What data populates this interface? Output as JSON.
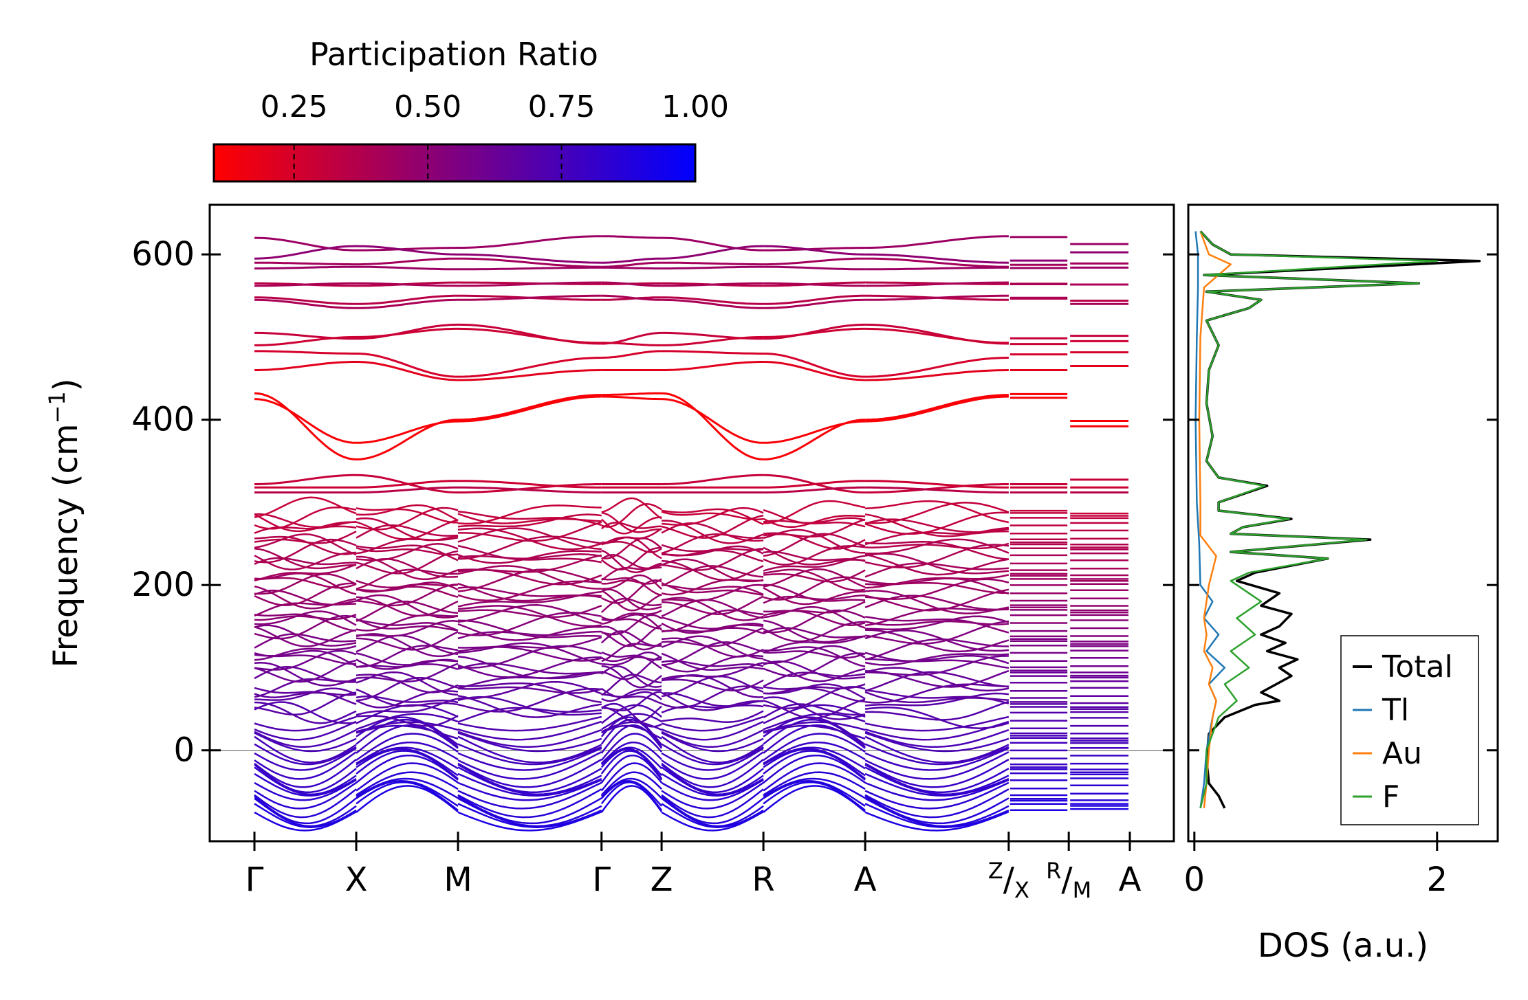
{
  "chart_data": [
    {
      "type": "line",
      "name": "phonon-band-structure",
      "ylabel": "Frequency (cm",
      "ylabel_sup": "−1",
      "ylabel_close": ")",
      "ylim": [
        -110,
        660
      ],
      "yticks": [
        0,
        200,
        400,
        600
      ],
      "ytick_labels": [
        "0",
        "200",
        "400",
        "600"
      ],
      "zero_line": true,
      "kpath_segments": [
        [
          0,
          1.0
        ],
        [
          1.0,
          2.0
        ],
        [
          2.0,
          3.41
        ],
        [
          3.41,
          4.0
        ],
        [
          4.0,
          5.0
        ],
        [
          5.0,
          6.0
        ],
        [
          6.0,
          7.41
        ],
        [
          7.41,
          8.0
        ],
        [
          8.0,
          8.6
        ]
      ],
      "kpoint_positions": [
        0,
        1.0,
        2.0,
        3.41,
        4.0,
        5.0,
        6.0,
        7.41,
        8.0,
        8.6
      ],
      "kpoint_labels": [
        {
          "main": "Γ"
        },
        {
          "main": "X"
        },
        {
          "main": "M"
        },
        {
          "main": "Γ"
        },
        {
          "main": "Z"
        },
        {
          "main": "R"
        },
        {
          "main": "A"
        },
        {
          "sup": "Z",
          "main": "/",
          "sub": "X"
        },
        {
          "sup": "R",
          "main": "/",
          "sub": "M"
        },
        {
          "main": "A"
        }
      ],
      "color_by": "participation_ratio",
      "branches_high": [
        {
          "f0": 620,
          "f1": 605,
          "f2": 608,
          "f3": 622,
          "pr": 0.45
        },
        {
          "f0": 595,
          "f1": 610,
          "f2": 600,
          "f3": 590,
          "pr": 0.5
        },
        {
          "f0": 590,
          "f1": 588,
          "f2": 595,
          "f3": 585,
          "pr": 0.42
        },
        {
          "f0": 583,
          "f1": 585,
          "f2": 582,
          "f3": 584,
          "pr": 0.45
        },
        {
          "f0": 565,
          "f1": 562,
          "f2": 566,
          "f3": 564,
          "pr": 0.35
        },
        {
          "f0": 562,
          "f1": 565,
          "f2": 562,
          "f3": 566,
          "pr": 0.4
        },
        {
          "f0": 548,
          "f1": 540,
          "f2": 550,
          "f3": 545,
          "pr": 0.35
        },
        {
          "f0": 545,
          "f1": 535,
          "f2": 545,
          "f3": 550,
          "pr": 0.4
        },
        {
          "f0": 505,
          "f1": 498,
          "f2": 515,
          "f3": 492,
          "pr": 0.3
        },
        {
          "f0": 490,
          "f1": 500,
          "f2": 510,
          "f3": 493,
          "pr": 0.28
        },
        {
          "f0": 483,
          "f1": 480,
          "f2": 452,
          "f3": 475,
          "pr": 0.25
        },
        {
          "f0": 460,
          "f1": 470,
          "f2": 448,
          "f3": 460,
          "pr": 0.2
        },
        {
          "f0": 432,
          "f1": 352,
          "f2": 400,
          "f3": 430,
          "pr": 0.12
        },
        {
          "f0": 425,
          "f1": 372,
          "f2": 398,
          "f3": 428,
          "pr": 0.12
        },
        {
          "f0": 322,
          "f1": 333,
          "f2": 312,
          "f3": 322,
          "pr": 0.3
        },
        {
          "f0": 318,
          "f1": 318,
          "f2": 326,
          "f3": 318,
          "pr": 0.28
        },
        {
          "f0": 312,
          "f1": 312,
          "f2": 318,
          "f3": 312,
          "pr": 0.35
        }
      ],
      "dense_band": {
        "fmin": -75,
        "fmax": 290,
        "count": 60,
        "pr_low": 0.9,
        "pr_high": 0.3
      }
    },
    {
      "type": "line",
      "name": "density-of-states",
      "xlabel": "DOS (a.u.)",
      "xlim": [
        -0.05,
        2.5
      ],
      "xticks": [
        0,
        2
      ],
      "xtick_labels": [
        "0",
        "2"
      ],
      "ylim": [
        -110,
        660
      ],
      "legend_position": "lower-right",
      "series": [
        {
          "name": "Total",
          "color": "#000000",
          "points": [
            [
              0.25,
              -70
            ],
            [
              0.2,
              -55
            ],
            [
              0.12,
              -40
            ],
            [
              0.1,
              -10
            ],
            [
              0.12,
              20
            ],
            [
              0.25,
              40
            ],
            [
              0.5,
              55
            ],
            [
              0.7,
              60
            ],
            [
              0.55,
              70
            ],
            [
              0.8,
              90
            ],
            [
              0.7,
              100
            ],
            [
              0.85,
              110
            ],
            [
              0.6,
              120
            ],
            [
              0.75,
              130
            ],
            [
              0.55,
              140
            ],
            [
              0.7,
              150
            ],
            [
              0.8,
              165
            ],
            [
              0.55,
              175
            ],
            [
              0.7,
              190
            ],
            [
              0.35,
              205
            ],
            [
              0.5,
              215
            ],
            [
              1.1,
              232
            ],
            [
              0.3,
              240
            ],
            [
              1.45,
              255
            ],
            [
              0.3,
              262
            ],
            [
              0.4,
              270
            ],
            [
              0.8,
              280
            ],
            [
              0.2,
              290
            ],
            [
              0.2,
              300
            ],
            [
              0.6,
              320
            ],
            [
              0.2,
              330
            ],
            [
              0.1,
              350
            ],
            [
              0.15,
              380
            ],
            [
              0.1,
              420
            ],
            [
              0.12,
              460
            ],
            [
              0.2,
              490
            ],
            [
              0.1,
              520
            ],
            [
              0.45,
              535
            ],
            [
              0.55,
              545
            ],
            [
              0.1,
              555
            ],
            [
              1.85,
              565
            ],
            [
              0.08,
              575
            ],
            [
              2.35,
              592
            ],
            [
              0.3,
              600
            ],
            [
              0.15,
              612
            ],
            [
              0.05,
              628
            ]
          ]
        },
        {
          "name": "Tl",
          "color": "#1f77b4",
          "points": [
            [
              0.05,
              -70
            ],
            [
              0.08,
              -40
            ],
            [
              0.1,
              0
            ],
            [
              0.15,
              40
            ],
            [
              0.18,
              60
            ],
            [
              0.12,
              80
            ],
            [
              0.25,
              100
            ],
            [
              0.1,
              120
            ],
            [
              0.2,
              140
            ],
            [
              0.08,
              160
            ],
            [
              0.15,
              180
            ],
            [
              0.05,
              200
            ],
            [
              0.04,
              250
            ],
            [
              0.02,
              300
            ],
            [
              0.01,
              400
            ],
            [
              0.02,
              500
            ],
            [
              0.03,
              560
            ],
            [
              0.03,
              600
            ],
            [
              0.01,
              628
            ]
          ]
        },
        {
          "name": "Au",
          "color": "#ff7f0e",
          "points": [
            [
              0.08,
              -70
            ],
            [
              0.1,
              -40
            ],
            [
              0.12,
              0
            ],
            [
              0.15,
              40
            ],
            [
              0.18,
              60
            ],
            [
              0.12,
              80
            ],
            [
              0.15,
              100
            ],
            [
              0.08,
              120
            ],
            [
              0.1,
              140
            ],
            [
              0.08,
              160
            ],
            [
              0.12,
              200
            ],
            [
              0.18,
              235
            ],
            [
              0.05,
              260
            ],
            [
              0.05,
              300
            ],
            [
              0.04,
              400
            ],
            [
              0.05,
              500
            ],
            [
              0.08,
              560
            ],
            [
              0.3,
              588
            ],
            [
              0.12,
              600
            ],
            [
              0.05,
              628
            ]
          ]
        },
        {
          "name": "F",
          "color": "#2ca02c",
          "points": [
            [
              0.05,
              -70
            ],
            [
              0.1,
              -40
            ],
            [
              0.1,
              0
            ],
            [
              0.2,
              40
            ],
            [
              0.35,
              60
            ],
            [
              0.25,
              80
            ],
            [
              0.45,
              100
            ],
            [
              0.3,
              120
            ],
            [
              0.5,
              140
            ],
            [
              0.35,
              160
            ],
            [
              0.55,
              180
            ],
            [
              0.3,
              205
            ],
            [
              0.45,
              215
            ],
            [
              1.1,
              232
            ],
            [
              0.3,
              240
            ],
            [
              1.42,
              255
            ],
            [
              0.3,
              262
            ],
            [
              0.4,
              270
            ],
            [
              0.78,
              280
            ],
            [
              0.2,
              290
            ],
            [
              0.2,
              300
            ],
            [
              0.58,
              320
            ],
            [
              0.2,
              330
            ],
            [
              0.1,
              350
            ],
            [
              0.15,
              380
            ],
            [
              0.1,
              420
            ],
            [
              0.12,
              460
            ],
            [
              0.2,
              490
            ],
            [
              0.1,
              520
            ],
            [
              0.45,
              535
            ],
            [
              0.55,
              545
            ],
            [
              0.1,
              555
            ],
            [
              1.85,
              565
            ],
            [
              0.08,
              575
            ],
            [
              2.0,
              592
            ],
            [
              0.3,
              600
            ],
            [
              0.15,
              612
            ],
            [
              0.05,
              628
            ]
          ]
        }
      ]
    },
    {
      "type": "heatmap",
      "name": "colorbar",
      "title": "Participation Ratio",
      "range": [
        0.1,
        1.0
      ],
      "ticks": [
        0.25,
        0.5,
        0.75,
        1.0
      ],
      "tick_labels": [
        "0.25",
        "0.50",
        "0.75",
        "1.00"
      ],
      "colors": {
        "low": "#ff0000",
        "high": "#0000ff"
      }
    }
  ]
}
